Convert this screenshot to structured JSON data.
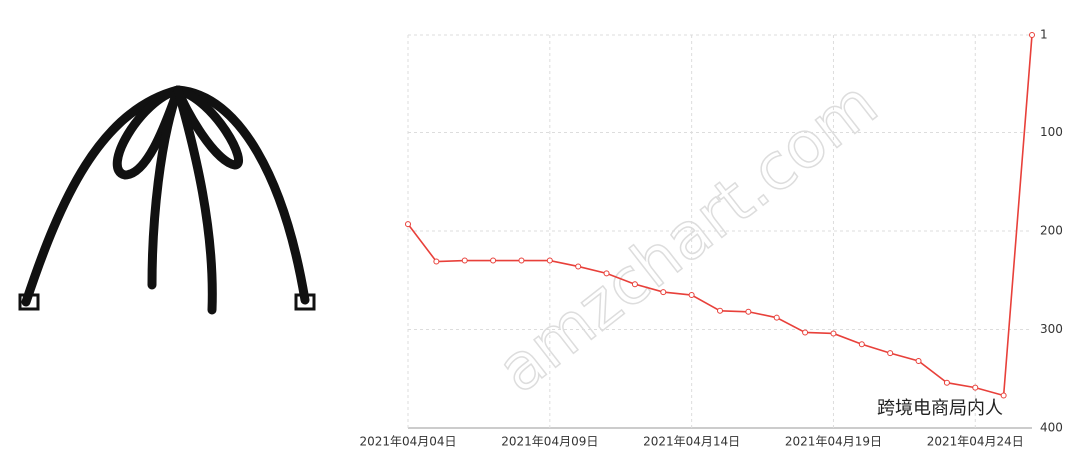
{
  "chart_data": {
    "type": "line",
    "categories": [
      "2021年04月04日",
      null,
      null,
      null,
      null,
      "2021年04月09日",
      null,
      null,
      null,
      null,
      "2021年04月14日",
      null,
      null,
      null,
      null,
      "2021年04月19日",
      null,
      null,
      null,
      null,
      "2021年04月24日",
      null,
      null
    ],
    "series": [
      {
        "color": "#e8403a",
        "values": [
          193,
          231,
          230,
          230,
          230,
          230,
          236,
          243,
          254,
          262,
          265,
          281,
          282,
          288,
          303,
          304,
          315,
          324,
          332,
          354,
          359,
          367,
          1
        ]
      }
    ],
    "ylim": [
      1,
      400
    ],
    "yticks": [
      1,
      100,
      200,
      300,
      400
    ],
    "y_inverted": true,
    "y_axis_side": "right",
    "grid": true,
    "annotations": [
      "amzchart.com",
      "跨境电商局内人"
    ]
  }
}
